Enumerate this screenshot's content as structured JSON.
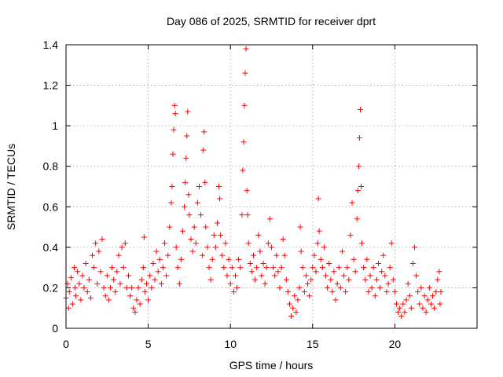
{
  "chart_data": {
    "type": "scatter",
    "title": "Day 086 of 2025, SRMTID for receiver dprt",
    "xlabel": "GPS time / hours",
    "ylabel": "SRMTID / TECUs",
    "xlim": [
      0,
      25
    ],
    "ylim": [
      0,
      1.4
    ],
    "xticks": [
      0,
      5,
      10,
      15,
      20
    ],
    "xtick_labels": [
      "0",
      "5",
      "10",
      "15",
      "20"
    ],
    "yticks": [
      0,
      0.2,
      0.4,
      0.6,
      0.8,
      1,
      1.2,
      1.4
    ],
    "ytick_labels": [
      "0",
      "0.2",
      "0.4",
      "0.6",
      "0.8",
      "1",
      "1.2",
      "1.4"
    ],
    "grid": true,
    "marker": "+",
    "marker_color": "#ff0000",
    "series": [
      {
        "name": "SRMTID",
        "points": [
          [
            0.0,
            0.15
          ],
          [
            0.1,
            0.22
          ],
          [
            0.15,
            0.1
          ],
          [
            0.2,
            0.18
          ],
          [
            0.3,
            0.25
          ],
          [
            0.4,
            0.12
          ],
          [
            0.5,
            0.3
          ],
          [
            0.55,
            0.2
          ],
          [
            0.6,
            0.16
          ],
          [
            0.7,
            0.28
          ],
          [
            0.8,
            0.22
          ],
          [
            0.9,
            0.14
          ],
          [
            1.0,
            0.26
          ],
          [
            1.1,
            0.2
          ],
          [
            1.2,
            0.32
          ],
          [
            1.3,
            0.18
          ],
          [
            1.4,
            0.24
          ],
          [
            1.5,
            0.15
          ],
          [
            1.6,
            0.36
          ],
          [
            1.7,
            0.3
          ],
          [
            1.8,
            0.42
          ],
          [
            1.9,
            0.22
          ],
          [
            2.0,
            0.38
          ],
          [
            2.1,
            0.28
          ],
          [
            2.2,
            0.44
          ],
          [
            2.3,
            0.2
          ],
          [
            2.4,
            0.16
          ],
          [
            2.5,
            0.26
          ],
          [
            2.6,
            0.14
          ],
          [
            2.7,
            0.2
          ],
          [
            2.8,
            0.3
          ],
          [
            2.9,
            0.24
          ],
          [
            3.0,
            0.18
          ],
          [
            3.1,
            0.28
          ],
          [
            3.2,
            0.36
          ],
          [
            3.3,
            0.22
          ],
          [
            3.4,
            0.4
          ],
          [
            3.5,
            0.3
          ],
          [
            3.6,
            0.42
          ],
          [
            3.7,
            0.2
          ],
          [
            3.8,
            0.26
          ],
          [
            3.9,
            0.16
          ],
          [
            4.0,
            0.2
          ],
          [
            4.1,
            0.1
          ],
          [
            4.2,
            0.08
          ],
          [
            4.3,
            0.14
          ],
          [
            4.4,
            0.2
          ],
          [
            4.5,
            0.12
          ],
          [
            4.6,
            0.24
          ],
          [
            4.7,
            0.3
          ],
          [
            4.75,
            0.45
          ],
          [
            4.8,
            0.18
          ],
          [
            4.9,
            0.22
          ],
          [
            5.0,
            0.14
          ],
          [
            5.1,
            0.26
          ],
          [
            5.2,
            0.2
          ],
          [
            5.3,
            0.32
          ],
          [
            5.4,
            0.24
          ],
          [
            5.5,
            0.38
          ],
          [
            5.6,
            0.28
          ],
          [
            5.7,
            0.34
          ],
          [
            5.8,
            0.22
          ],
          [
            5.9,
            0.3
          ],
          [
            6.0,
            0.42
          ],
          [
            6.1,
            0.26
          ],
          [
            6.2,
            0.36
          ],
          [
            6.3,
            0.5
          ],
          [
            6.4,
            0.62
          ],
          [
            6.45,
            0.7
          ],
          [
            6.5,
            0.86
          ],
          [
            6.55,
            0.98
          ],
          [
            6.6,
            1.1
          ],
          [
            6.65,
            1.06
          ],
          [
            6.7,
            0.4
          ],
          [
            6.8,
            0.3
          ],
          [
            6.9,
            0.22
          ],
          [
            7.0,
            0.34
          ],
          [
            7.1,
            0.48
          ],
          [
            7.2,
            0.6
          ],
          [
            7.25,
            0.72
          ],
          [
            7.3,
            0.84
          ],
          [
            7.35,
            0.95
          ],
          [
            7.4,
            1.07
          ],
          [
            7.45,
            0.66
          ],
          [
            7.5,
            0.56
          ],
          [
            7.6,
            0.44
          ],
          [
            7.7,
            0.38
          ],
          [
            7.8,
            0.5
          ],
          [
            7.9,
            0.42
          ],
          [
            8.0,
            0.62
          ],
          [
            8.1,
            0.7
          ],
          [
            8.2,
            0.56
          ],
          [
            8.3,
            0.36
          ],
          [
            8.35,
            0.88
          ],
          [
            8.4,
            0.97
          ],
          [
            8.45,
            0.72
          ],
          [
            8.5,
            0.5
          ],
          [
            8.6,
            0.4
          ],
          [
            8.7,
            0.3
          ],
          [
            8.8,
            0.24
          ],
          [
            8.9,
            0.34
          ],
          [
            9.0,
            0.46
          ],
          [
            9.1,
            0.4
          ],
          [
            9.2,
            0.52
          ],
          [
            9.3,
            0.7
          ],
          [
            9.35,
            0.64
          ],
          [
            9.4,
            0.46
          ],
          [
            9.5,
            0.36
          ],
          [
            9.6,
            0.3
          ],
          [
            9.7,
            0.42
          ],
          [
            9.8,
            0.26
          ],
          [
            9.9,
            0.34
          ],
          [
            10.0,
            0.22
          ],
          [
            10.1,
            0.3
          ],
          [
            10.2,
            0.18
          ],
          [
            10.3,
            0.26
          ],
          [
            10.4,
            0.2
          ],
          [
            10.5,
            0.34
          ],
          [
            10.6,
            0.3
          ],
          [
            10.7,
            0.56
          ],
          [
            10.75,
            0.78
          ],
          [
            10.8,
            0.92
          ],
          [
            10.85,
            1.1
          ],
          [
            10.9,
            1.26
          ],
          [
            10.95,
            1.38
          ],
          [
            11.0,
            0.68
          ],
          [
            11.05,
            0.56
          ],
          [
            11.1,
            0.42
          ],
          [
            11.2,
            0.32
          ],
          [
            11.3,
            0.28
          ],
          [
            11.4,
            0.36
          ],
          [
            11.5,
            0.24
          ],
          [
            11.6,
            0.3
          ],
          [
            11.7,
            0.46
          ],
          [
            11.8,
            0.38
          ],
          [
            11.9,
            0.26
          ],
          [
            12.0,
            0.32
          ],
          [
            12.1,
            0.22
          ],
          [
            12.2,
            0.3
          ],
          [
            12.3,
            0.42
          ],
          [
            12.4,
            0.54
          ],
          [
            12.5,
            0.4
          ],
          [
            12.6,
            0.3
          ],
          [
            12.7,
            0.26
          ],
          [
            12.8,
            0.36
          ],
          [
            12.9,
            0.28
          ],
          [
            13.0,
            0.2
          ],
          [
            13.1,
            0.3
          ],
          [
            13.2,
            0.44
          ],
          [
            13.3,
            0.36
          ],
          [
            13.4,
            0.24
          ],
          [
            13.5,
            0.18
          ],
          [
            13.6,
            0.12
          ],
          [
            13.7,
            0.06
          ],
          [
            13.8,
            0.1
          ],
          [
            13.9,
            0.16
          ],
          [
            14.0,
            0.08
          ],
          [
            14.1,
            0.14
          ],
          [
            14.2,
            0.2
          ],
          [
            14.25,
            0.5
          ],
          [
            14.3,
            0.38
          ],
          [
            14.4,
            0.3
          ],
          [
            14.5,
            0.18
          ],
          [
            14.6,
            0.26
          ],
          [
            14.7,
            0.22
          ],
          [
            14.8,
            0.16
          ],
          [
            14.9,
            0.24
          ],
          [
            15.0,
            0.3
          ],
          [
            15.1,
            0.36
          ],
          [
            15.2,
            0.28
          ],
          [
            15.3,
            0.42
          ],
          [
            15.35,
            0.64
          ],
          [
            15.4,
            0.48
          ],
          [
            15.5,
            0.34
          ],
          [
            15.6,
            0.3
          ],
          [
            15.7,
            0.4
          ],
          [
            15.8,
            0.26
          ],
          [
            15.9,
            0.2
          ],
          [
            16.0,
            0.32
          ],
          [
            16.1,
            0.24
          ],
          [
            16.2,
            0.18
          ],
          [
            16.3,
            0.28
          ],
          [
            16.4,
            0.14
          ],
          [
            16.5,
            0.22
          ],
          [
            16.6,
            0.3
          ],
          [
            16.7,
            0.2
          ],
          [
            16.8,
            0.38
          ],
          [
            16.9,
            0.26
          ],
          [
            17.0,
            0.18
          ],
          [
            17.1,
            0.3
          ],
          [
            17.2,
            0.24
          ],
          [
            17.3,
            0.46
          ],
          [
            17.4,
            0.62
          ],
          [
            17.5,
            0.34
          ],
          [
            17.6,
            0.28
          ],
          [
            17.7,
            0.54
          ],
          [
            17.75,
            0.68
          ],
          [
            17.8,
            0.8
          ],
          [
            17.85,
            0.94
          ],
          [
            17.9,
            1.08
          ],
          [
            17.95,
            0.7
          ],
          [
            18.0,
            0.42
          ],
          [
            18.1,
            0.3
          ],
          [
            18.2,
            0.24
          ],
          [
            18.3,
            0.34
          ],
          [
            18.4,
            0.18
          ],
          [
            18.5,
            0.26
          ],
          [
            18.6,
            0.2
          ],
          [
            18.7,
            0.3
          ],
          [
            18.8,
            0.16
          ],
          [
            18.9,
            0.24
          ],
          [
            19.0,
            0.32
          ],
          [
            19.1,
            0.2
          ],
          [
            19.2,
            0.28
          ],
          [
            19.3,
            0.36
          ],
          [
            19.4,
            0.26
          ],
          [
            19.5,
            0.18
          ],
          [
            19.6,
            0.22
          ],
          [
            19.7,
            0.3
          ],
          [
            19.8,
            0.42
          ],
          [
            19.9,
            0.24
          ],
          [
            20.0,
            0.18
          ],
          [
            20.1,
            0.12
          ],
          [
            20.2,
            0.08
          ],
          [
            20.3,
            0.1
          ],
          [
            20.4,
            0.06
          ],
          [
            20.5,
            0.12
          ],
          [
            20.6,
            0.08
          ],
          [
            20.7,
            0.14
          ],
          [
            20.8,
            0.22
          ],
          [
            20.9,
            0.16
          ],
          [
            21.0,
            0.1
          ],
          [
            21.1,
            0.32
          ],
          [
            21.2,
            0.4
          ],
          [
            21.3,
            0.26
          ],
          [
            21.4,
            0.18
          ],
          [
            21.5,
            0.12
          ],
          [
            21.6,
            0.2
          ],
          [
            21.7,
            0.1
          ],
          [
            21.8,
            0.16
          ],
          [
            21.9,
            0.08
          ],
          [
            22.0,
            0.14
          ],
          [
            22.1,
            0.2
          ],
          [
            22.2,
            0.12
          ],
          [
            22.3,
            0.16
          ],
          [
            22.4,
            0.1
          ],
          [
            22.5,
            0.18
          ],
          [
            22.6,
            0.24
          ],
          [
            22.7,
            0.28
          ],
          [
            22.75,
            0.12
          ],
          [
            22.8,
            0.18
          ]
        ]
      }
    ]
  }
}
